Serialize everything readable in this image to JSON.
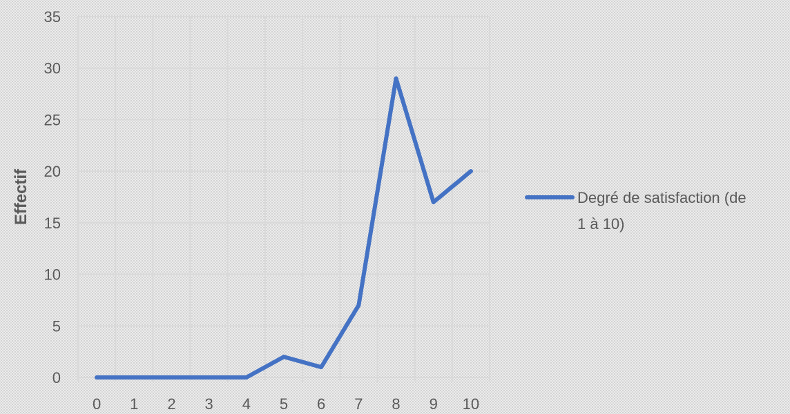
{
  "chart_data": {
    "type": "line",
    "title": "",
    "xlabel": "",
    "ylabel": "Effectif",
    "x": [
      0,
      1,
      2,
      3,
      4,
      5,
      6,
      7,
      8,
      9,
      10
    ],
    "series": [
      {
        "name": "Degré de satisfaction (de 1 à 10)",
        "name_lines": [
          "Degré de satisfaction (de",
          "1 à 10)"
        ],
        "values": [
          0,
          0,
          0,
          0,
          0,
          2,
          1,
          7,
          29,
          17,
          20
        ],
        "color": "#4472C4"
      }
    ],
    "xlim": [
      0,
      10
    ],
    "ylim": [
      0,
      35
    ],
    "y_ticks": [
      0,
      5,
      10,
      15,
      20,
      25,
      30,
      35
    ],
    "grid": true,
    "legend_position": "right"
  }
}
